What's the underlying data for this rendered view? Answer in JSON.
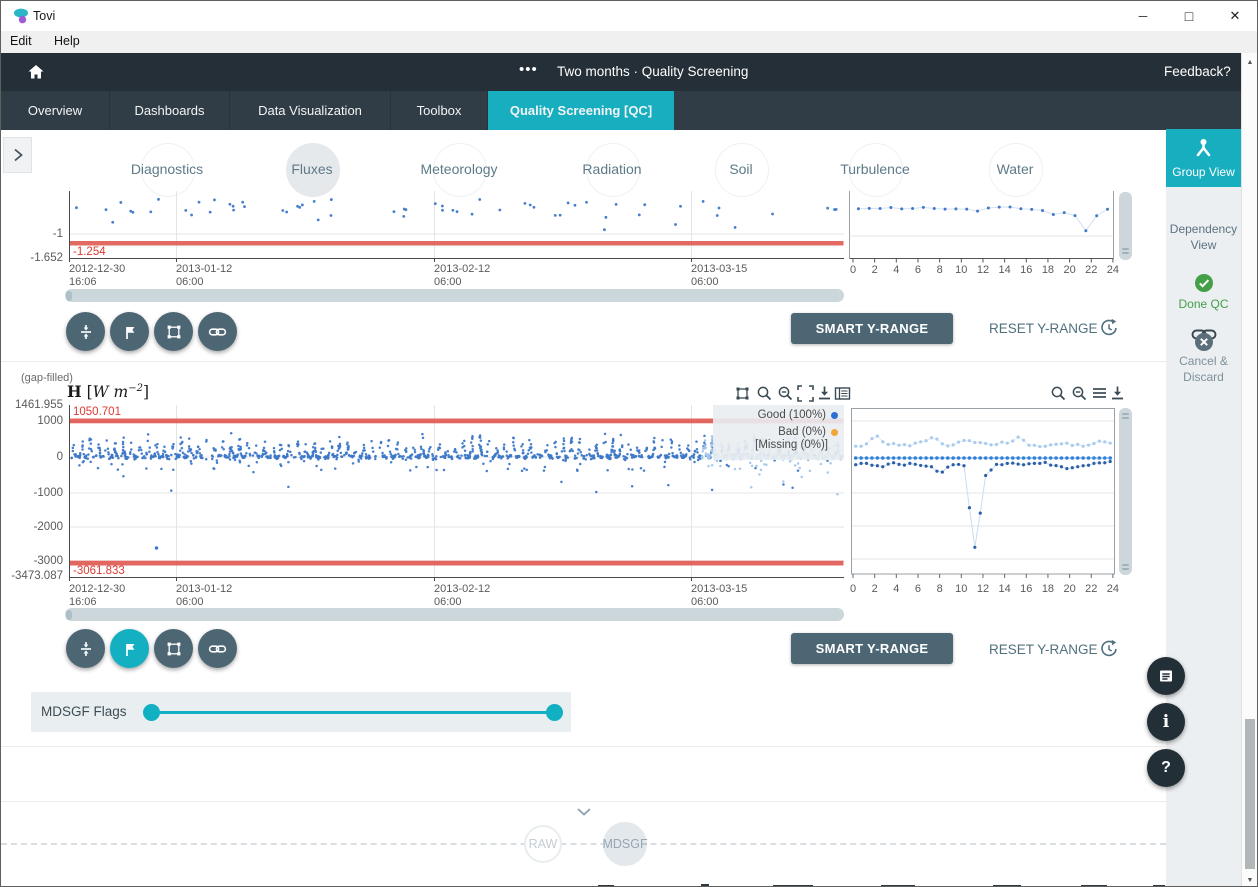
{
  "window": {
    "title": "Tovi",
    "controls": {
      "minimize": "─",
      "maximize": "□",
      "close": "✕"
    }
  },
  "menu": {
    "items": [
      {
        "label": "Edit"
      },
      {
        "label": "Help"
      }
    ]
  },
  "header": {
    "menu_dots": "•••",
    "title": "Two months · Quality Screening",
    "feedback": "Feedback?"
  },
  "tabs": {
    "items": [
      {
        "label": "Overview",
        "active": false
      },
      {
        "label": "Dashboards",
        "active": false
      },
      {
        "label": "Data Visualization",
        "active": false
      },
      {
        "label": "Toolbox",
        "active": false
      },
      {
        "label": "Quality Screening [QC]",
        "active": true
      }
    ]
  },
  "categories": {
    "items": [
      {
        "label": "Diagnostics",
        "active": false
      },
      {
        "label": "Fluxes",
        "active": true
      },
      {
        "label": "Meteorology",
        "active": false
      },
      {
        "label": "Radiation",
        "active": false
      },
      {
        "label": "Soil",
        "active": false
      },
      {
        "label": "Turbulence",
        "active": false
      },
      {
        "label": "Water",
        "active": false
      }
    ]
  },
  "sidebar": {
    "group_view": "Group View",
    "dependency_l1": "Dependency",
    "dependency_l2": "View",
    "done_qc": "Done QC",
    "cancel_l1": "Cancel &",
    "cancel_l2": "Discard"
  },
  "panel1": {
    "y_ticks": [
      "-1",
      "-1.652"
    ],
    "limit_low_label": "-1.254",
    "x_ticks": [
      [
        "2012-12-30",
        "16:06"
      ],
      [
        "2013-01-12",
        "06:00"
      ],
      [
        "2013-02-12",
        "06:00"
      ],
      [
        "2013-03-15",
        "06:00"
      ]
    ],
    "smart_button": "SMART Y-RANGE",
    "reset_button": "RESET Y-RANGE"
  },
  "panel2": {
    "gap_filled": "(gap-filled)",
    "title": {
      "variable": "H",
      "open": " [",
      "units": "W m",
      "exponent": "−2",
      "close": "]"
    },
    "y_ticks": [
      "1461.955",
      "1000",
      "0",
      "-1000",
      "-2000",
      "-3000",
      "-3473.087"
    ],
    "limit_high_label": "1050.701",
    "limit_low_label": "-3061.833",
    "legend": [
      {
        "label": "Good (100%)",
        "color": "#2e6fd3"
      },
      {
        "label": "Bad (0%)",
        "color": "#f2a63a"
      },
      {
        "label": "[Missing (0%)]",
        "color": null
      }
    ],
    "x_ticks": [
      [
        "2012-12-30",
        "16:06"
      ],
      [
        "2013-01-12",
        "06:00"
      ],
      [
        "2013-02-12",
        "06:00"
      ],
      [
        "2013-03-15",
        "06:00"
      ]
    ],
    "smart_button": "SMART Y-RANGE",
    "reset_button": "RESET Y-RANGE"
  },
  "hours": [
    "0",
    "2",
    "4",
    "6",
    "8",
    "10",
    "12",
    "14",
    "16",
    "18",
    "20",
    "22",
    "24"
  ],
  "mdsgf": {
    "label": "MDSGF Flags"
  },
  "pipeline": {
    "raw": "RAW",
    "mdsgf": "MDSGF"
  },
  "floating": {
    "info_glyph": "i",
    "help_glyph": "?"
  },
  "colors": {
    "accent": "#17afc0",
    "slate_button": "#4d6673",
    "limit_red": "#df5a52",
    "good_blue": "#3d78c8",
    "gapfill_blue": "#a3c6ea",
    "bad_orange": "#f2a63a",
    "done_green": "#43a047",
    "header_dark": "#252f37"
  },
  "icons": [
    "app-logo-icon",
    "home-icon",
    "chevron-right-icon",
    "group-view-icon",
    "link-icon",
    "check-icon",
    "x-icon",
    "limit-range-icon",
    "flag-icon",
    "selection-icon",
    "zoom-in-icon",
    "zoom-out-icon",
    "fullscreen-icon",
    "download-icon",
    "legend-book-icon",
    "menu-lines-icon",
    "reset-history-icon",
    "chevron-down-icon",
    "notes-icon",
    "info-icon",
    "help-icon",
    "scroll-up-icon",
    "scroll-down-icon"
  ],
  "chart_data": [
    {
      "type": "scatter",
      "panel": "top-timeseries (partially visible)",
      "y_axis_ticks": [
        -1,
        -1.652
      ],
      "limit_line_low": -1.254,
      "limit_color": "#df5a52",
      "x_axis_ticks": [
        "2012-12-30 16:06",
        "2013-01-12 06:00",
        "2013-02-12 06:00",
        "2013-03-15 06:00"
      ],
      "note": "sparse blue points between ~0 and -0.9, all above the -1.254 limit line"
    },
    {
      "type": "line",
      "panel": "top-diurnal-inset",
      "x_ticks": [
        0,
        2,
        4,
        6,
        8,
        10,
        12,
        14,
        16,
        18,
        20,
        22,
        24
      ],
      "x": [
        0,
        1,
        2,
        3,
        4,
        5,
        6,
        7,
        8,
        9,
        10,
        11,
        12,
        13,
        14,
        15,
        16,
        17,
        18,
        19,
        20,
        21,
        22,
        23
      ],
      "values": [
        -0.3,
        -0.28,
        -0.33,
        -0.27,
        -0.35,
        -0.3,
        -0.26,
        -0.31,
        -0.29,
        -0.34,
        -0.3,
        -0.36,
        -0.28,
        -0.31,
        -0.27,
        -0.33,
        -0.3,
        -0.38,
        -0.45,
        -0.4,
        -0.52,
        -0.95,
        -0.48,
        -0.35
      ]
    },
    {
      "type": "scatter",
      "panel": "main-timeseries",
      "title": "H [W m−2] (gap-filled)",
      "ylim": [
        -3473.087,
        1461.955
      ],
      "y_axis_ticks": [
        1000,
        0,
        -1000,
        -2000,
        -3000
      ],
      "limit_line_high": 1050.701,
      "limit_line_low": -3061.833,
      "x_axis_ticks": [
        "2012-12-30 16:06",
        "2013-01-12 06:00",
        "2013-02-12 06:00",
        "2013-03-15 06:00"
      ],
      "legend": [
        {
          "name": "Good (100%)",
          "color": "#3d78c8"
        },
        {
          "name": "Bad (0%)",
          "color": "#f2a63a"
        },
        {
          "name": "[Missing (0%)]"
        }
      ],
      "note": "dense band around 0 with diurnal positive spikes to ~+600 and dips to ~-600; isolated outlier near -2700 early in record; gap-filled points (light blue) overlap last ~2 weeks"
    },
    {
      "type": "line",
      "panel": "main-diurnal-inset",
      "x_ticks": [
        0,
        2,
        4,
        6,
        8,
        10,
        12,
        14,
        16,
        18,
        20,
        22,
        24
      ],
      "x": [
        0,
        1,
        2,
        3,
        4,
        5,
        6,
        7,
        8,
        9,
        10,
        11,
        12,
        13,
        14,
        15,
        16,
        17,
        18,
        19,
        20,
        21,
        22,
        23
      ],
      "series": [
        {
          "name": "upper",
          "color": "#a9cbed",
          "values": [
            350,
            420,
            650,
            400,
            380,
            360,
            480,
            600,
            420,
            390,
            520,
            460,
            430,
            400,
            440,
            620,
            380,
            340,
            390,
            420,
            370,
            350,
            430,
            480
          ]
        },
        {
          "name": "mean",
          "color": "#2f80d8",
          "values": [
            0,
            0,
            0,
            0,
            0,
            0,
            0,
            0,
            0,
            0,
            0,
            0,
            0,
            0,
            0,
            0,
            0,
            0,
            0,
            0,
            0,
            0,
            0,
            0
          ]
        },
        {
          "name": "lower",
          "color": "#2c5fa8",
          "values": [
            -200,
            -160,
            -230,
            -180,
            -190,
            -160,
            -220,
            -260,
            -420,
            -200,
            -230,
            -2650,
            -520,
            -190,
            -160,
            -180,
            -170,
            -160,
            -210,
            -260,
            -290,
            -230,
            -160,
            -140
          ]
        }
      ]
    }
  ]
}
